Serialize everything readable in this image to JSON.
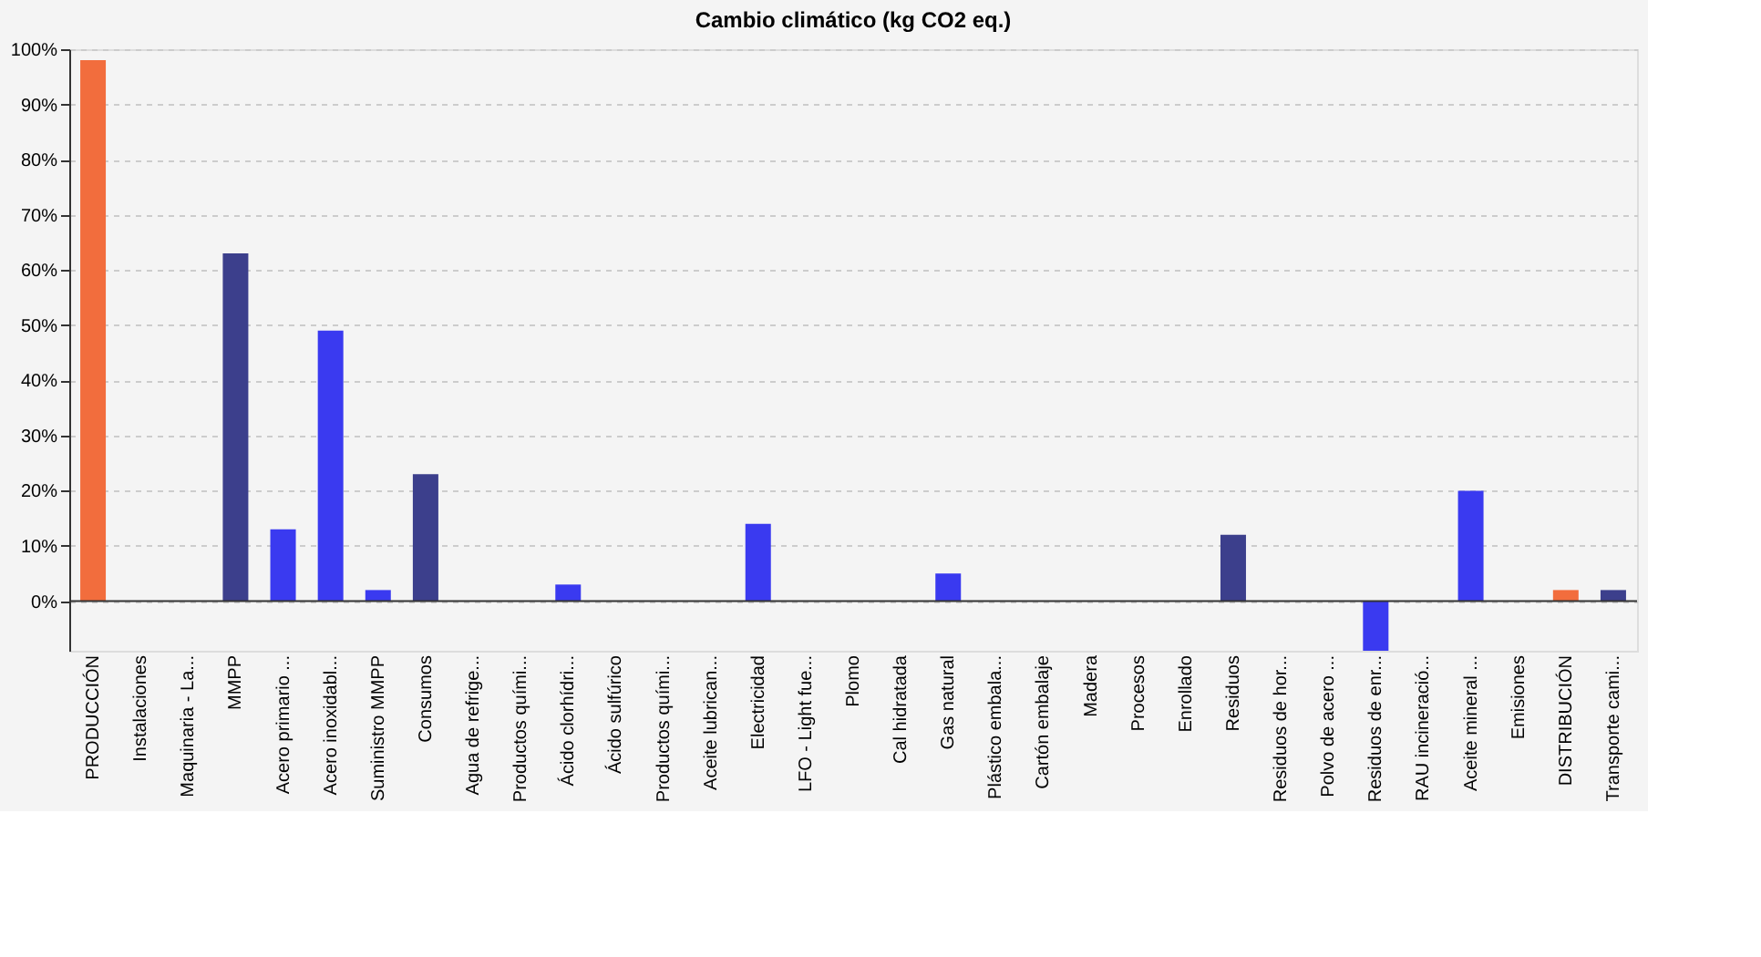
{
  "chart_data": {
    "type": "bar",
    "title": "Cambio climático (kg CO2 eq.)",
    "categories": [
      "PRODUCCIÓN",
      "Instalaciones",
      "Maquinaria - La...",
      "MMPP",
      "Acero primario ...",
      "Acero inoxidabl...",
      "Suministro MMPP",
      "Consumos",
      "Agua de refrige...",
      "Productos quími...",
      "Ácido clorhídri...",
      "Ácido sulfúrico",
      "Productos quími...",
      "Aceite lubrican...",
      "Electricidad",
      "LFO - Light fue...",
      "Plomo",
      "Cal hidratada",
      "Gas natural",
      "Plástico embala...",
      "Cartón embalaje",
      "Madera",
      "Procesos",
      "Enrollado",
      "Residuos",
      "Residuos de hor...",
      "Polvo de acero ...",
      "Residuos de enr...",
      "RAU incineració...",
      "Aceite mineral ...",
      "Emisiones",
      "DISTRIBUCIÓN",
      "Transporte cami..."
    ],
    "values": [
      98,
      0,
      0,
      63,
      13,
      49,
      2,
      23,
      0,
      0,
      3,
      0,
      0,
      0,
      14,
      0,
      0,
      0,
      5,
      0,
      0,
      0,
      0,
      0,
      12,
      0,
      0,
      -9,
      0,
      20,
      0,
      2,
      2
    ],
    "colors": [
      "#f26d3d",
      "#3a3af0",
      "#3a3af0",
      "#3c3f8c",
      "#3a3af0",
      "#3a3af0",
      "#3a3af0",
      "#3c3f8c",
      "#3a3af0",
      "#3a3af0",
      "#3a3af0",
      "#3a3af0",
      "#3a3af0",
      "#3a3af0",
      "#3a3af0",
      "#3a3af0",
      "#3a3af0",
      "#3a3af0",
      "#3a3af0",
      "#3a3af0",
      "#3a3af0",
      "#3a3af0",
      "#3c3f8c",
      "#3a3af0",
      "#3c3f8c",
      "#3a3af0",
      "#3a3af0",
      "#3a3af0",
      "#3a3af0",
      "#3a3af0",
      "#3c3f8c",
      "#f26d3d",
      "#3c3f8c"
    ],
    "ylim": [
      -9,
      100
    ],
    "yticks": [
      {
        "value": 0,
        "label": "0%"
      },
      {
        "value": 10,
        "label": "10%"
      },
      {
        "value": 20,
        "label": "20%"
      },
      {
        "value": 30,
        "label": "30%"
      },
      {
        "value": 40,
        "label": "40%"
      },
      {
        "value": 50,
        "label": "50%"
      },
      {
        "value": 60,
        "label": "60%"
      },
      {
        "value": 70,
        "label": "70%"
      },
      {
        "value": 80,
        "label": "80%"
      },
      {
        "value": 90,
        "label": "90%"
      },
      {
        "value": 100,
        "label": "100%"
      }
    ],
    "grid": "y"
  }
}
